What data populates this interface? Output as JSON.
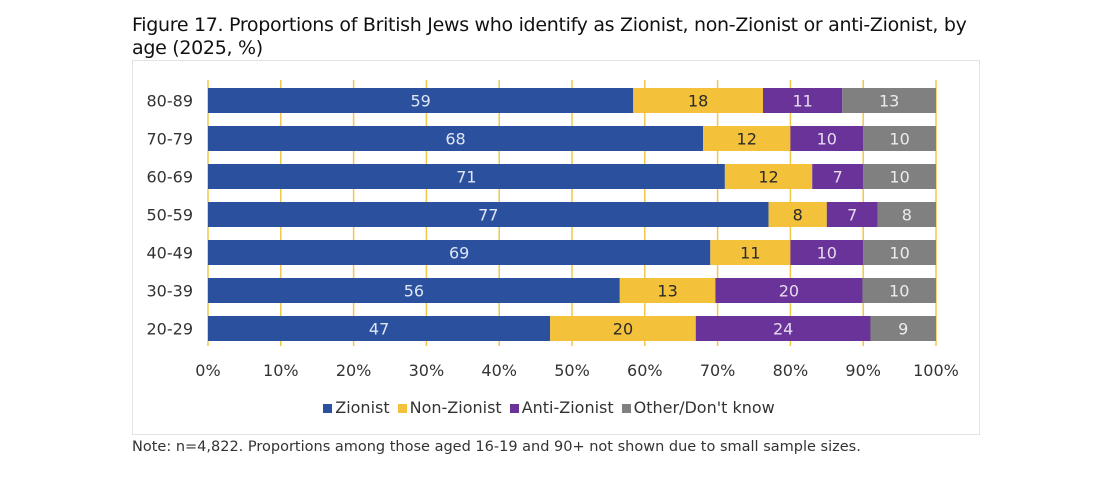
{
  "title": "Figure 17. Proportions of British Jews who identify as Zionist, non-Zionist or anti-Zionist, by age (2025, %)",
  "note": "Note: n=4,822. Proportions among those aged 16-19 and 90+ not shown due to small sample sizes.",
  "chart_data": {
    "type": "bar",
    "orientation": "horizontal",
    "stacked": "percent",
    "title": "Figure 17. Proportions of British Jews who identify as Zionist, non-Zionist or anti-Zionist, by age (2025, %)",
    "xlabel": "",
    "ylabel": "",
    "xlim": [
      0,
      100
    ],
    "x_ticks": [
      "0%",
      "10%",
      "20%",
      "30%",
      "40%",
      "50%",
      "60%",
      "70%",
      "80%",
      "90%",
      "100%"
    ],
    "grid": true,
    "legend_position": "bottom",
    "categories": [
      "80-89",
      "70-79",
      "60-69",
      "50-59",
      "40-49",
      "30-39",
      "20-29"
    ],
    "series": [
      {
        "name": "Zionist",
        "color": "#2b509e",
        "label_color": "#dfe6f5",
        "values": [
          59,
          68,
          71,
          77,
          69,
          56,
          47
        ]
      },
      {
        "name": "Non-Zionist",
        "color": "#f3c13a",
        "label_color": "#2a2a2a",
        "values": [
          18,
          12,
          12,
          8,
          11,
          13,
          20
        ]
      },
      {
        "name": "Anti-Zionist",
        "color": "#6a3399",
        "label_color": "#e6dcf0",
        "values": [
          11,
          10,
          7,
          7,
          10,
          20,
          24
        ]
      },
      {
        "name": "Other/Don't know",
        "color": "#808080",
        "label_color": "#ececec",
        "values": [
          13,
          10,
          10,
          8,
          10,
          10,
          9
        ]
      }
    ]
  },
  "colors": {
    "gridline": "#f0c84a",
    "frame_border": "#e3e3e3"
  }
}
